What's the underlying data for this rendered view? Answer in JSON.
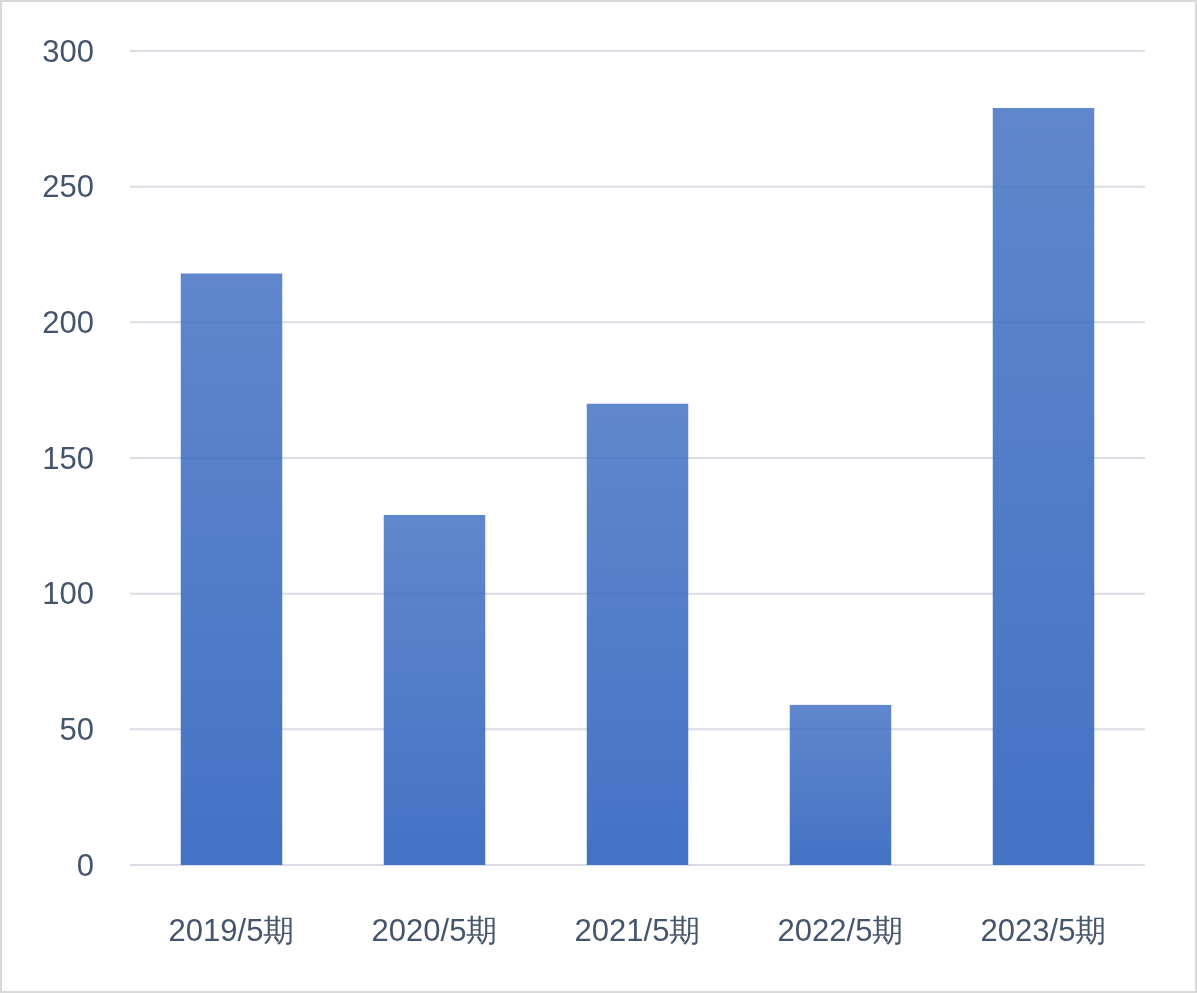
{
  "chart_data": {
    "type": "bar",
    "categories": [
      "2019/5期",
      "2020/5期",
      "2021/5期",
      "2022/5期",
      "2023/5期"
    ],
    "values": [
      218,
      129,
      170,
      59,
      279
    ],
    "color": "#4472c4",
    "ylim": [
      0,
      300
    ],
    "yticks": [
      0,
      50,
      100,
      150,
      200,
      250,
      300
    ],
    "grid": "y"
  }
}
